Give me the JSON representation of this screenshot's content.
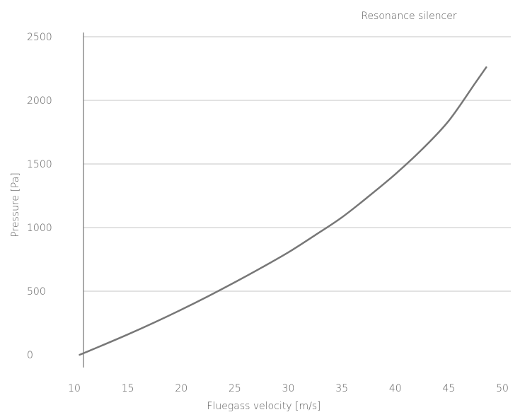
{
  "chart_data": {
    "type": "line",
    "title": "Resonance silencer",
    "xlabel": "Fluegass velocity [m/s]",
    "ylabel": "Pressure [Pa]",
    "xlim": [
      10,
      50
    ],
    "ylim": [
      0,
      2500
    ],
    "x_ticks": [
      "10",
      "15",
      "20",
      "25",
      "30",
      "35",
      "40",
      "45",
      "50"
    ],
    "y_ticks": [
      "0",
      "500",
      "1000",
      "1500",
      "2000",
      "2500"
    ],
    "grid": "horizontal",
    "legend": "none",
    "colors": {
      "line": "#777777",
      "grid": "#e2e2e2",
      "axis": "#555555"
    },
    "series": [
      {
        "x": [
          10.5,
          12.5,
          15,
          17.5,
          20,
          22.5,
          25,
          27.5,
          30,
          32.5,
          35,
          37.5,
          40,
          42.5,
          45,
          47.5,
          48.5
        ],
        "values": [
          0,
          70,
          160,
          255,
          355,
          460,
          570,
          685,
          805,
          940,
          1080,
          1245,
          1420,
          1615,
          1840,
          2140,
          2260
        ]
      }
    ]
  }
}
